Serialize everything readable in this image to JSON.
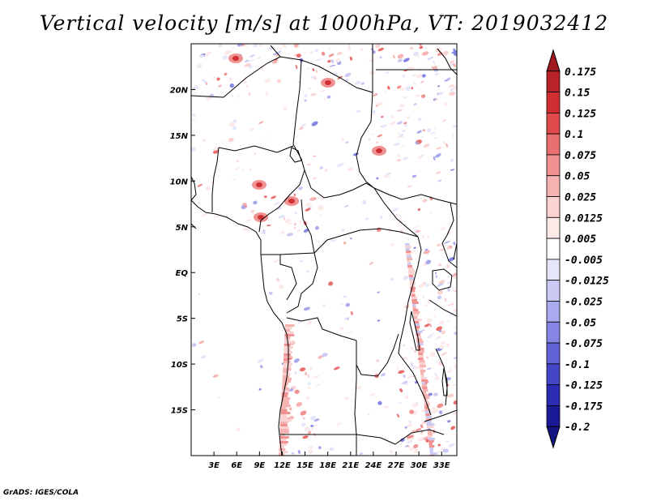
{
  "title": "Vertical velocity [m/s] at 1000hPa, VT: 2019032412",
  "credit": "GrADS: IGES/COLA",
  "map": {
    "lon_range": [
      0,
      35
    ],
    "lat_range": [
      -20,
      25
    ],
    "lon_ticks": [
      {
        "value": 3,
        "label": "3E"
      },
      {
        "value": 6,
        "label": "6E"
      },
      {
        "value": 9,
        "label": "9E"
      },
      {
        "value": 12,
        "label": "12E"
      },
      {
        "value": 15,
        "label": "15E"
      },
      {
        "value": 18,
        "label": "18E"
      },
      {
        "value": 21,
        "label": "21E"
      },
      {
        "value": 24,
        "label": "24E"
      },
      {
        "value": 27,
        "label": "27E"
      },
      {
        "value": 30,
        "label": "30E"
      },
      {
        "value": 33,
        "label": "33E"
      }
    ],
    "lat_ticks": [
      {
        "value": 20,
        "label": "20N"
      },
      {
        "value": 15,
        "label": "15N"
      },
      {
        "value": 10,
        "label": "10N"
      },
      {
        "value": 5,
        "label": "5N"
      },
      {
        "value": 0,
        "label": "EQ"
      },
      {
        "value": -5,
        "label": "5S"
      },
      {
        "value": -10,
        "label": "10S"
      },
      {
        "value": -15,
        "label": "15S"
      }
    ]
  },
  "colorbar": {
    "levels": [
      {
        "label": "0.175",
        "color": "#a0191e"
      },
      {
        "label": "0.15",
        "color": "#b92227"
      },
      {
        "label": "0.125",
        "color": "#d12e32"
      },
      {
        "label": "0.1",
        "color": "#e04a4c"
      },
      {
        "label": "0.075",
        "color": "#e8706f"
      },
      {
        "label": "0.05",
        "color": "#ef9291"
      },
      {
        "label": "0.025",
        "color": "#f5b3b2"
      },
      {
        "label": "0.0125",
        "color": "#f9d2d1"
      },
      {
        "label": "0.005",
        "color": "#fde9e8"
      },
      {
        "label": "-0.005",
        "color": "#ffffff"
      },
      {
        "label": "-0.0125",
        "color": "#e6e6fb"
      },
      {
        "label": "-0.025",
        "color": "#cacaf5"
      },
      {
        "label": "-0.05",
        "color": "#a9a9ee"
      },
      {
        "label": "-0.075",
        "color": "#8585e4"
      },
      {
        "label": "-0.1",
        "color": "#6363d8"
      },
      {
        "label": "-0.125",
        "color": "#4545c8"
      },
      {
        "label": "-0.175",
        "color": "#2c2cb2"
      },
      {
        "label": "-0.2",
        "color": "#1a1a96"
      }
    ],
    "bottom_color": "#141482"
  }
}
